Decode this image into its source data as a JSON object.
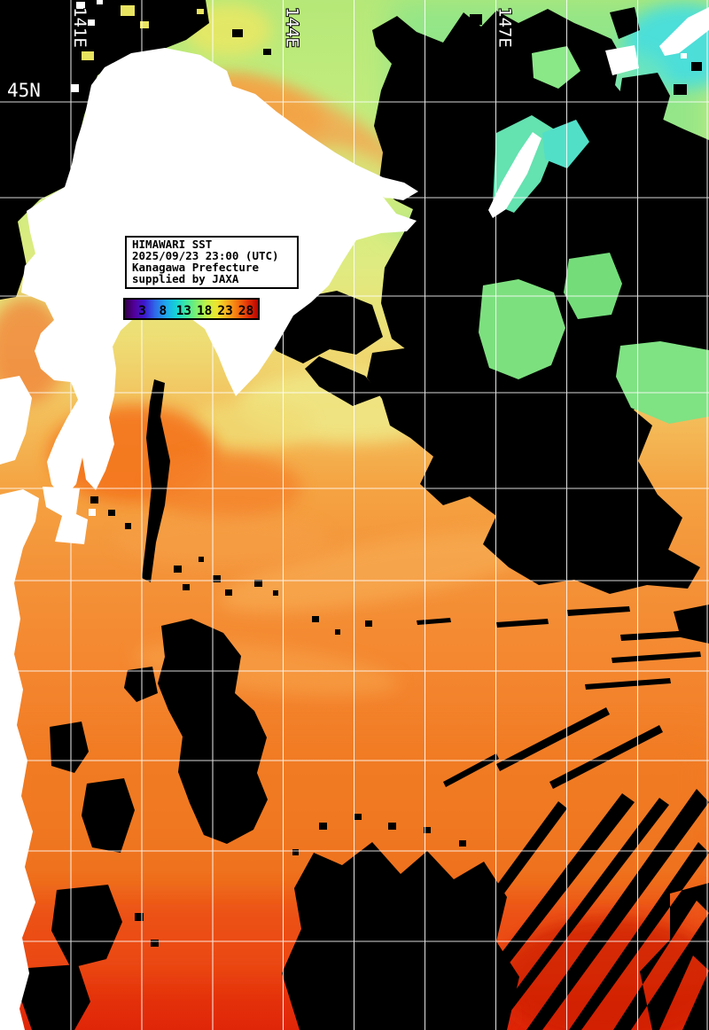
{
  "info_box": {
    "lines": [
      "HIMAWARI SST",
      "2025/09/23 23:00 (UTC)",
      "Kanagawa Prefecture",
      "supplied by JAXA"
    ]
  },
  "colorbar": {
    "tick_labels": [
      "3",
      "8",
      "13",
      "18",
      "23",
      "28"
    ],
    "gradient": [
      "#2e003e",
      "#53009b",
      "#3b1bd1",
      "#2e6ae8",
      "#1fa6f0",
      "#15d2d5",
      "#3ee9a2",
      "#7ff06e",
      "#c3f245",
      "#f0e32e",
      "#f8ad1d",
      "#f4700e",
      "#e03008",
      "#b40000"
    ],
    "border_color": "#000000"
  },
  "graticule": {
    "lat_labels": [
      "45N"
    ],
    "lon_labels": [
      "141E",
      "144E",
      "147E"
    ],
    "line_color": "#ffffff"
  },
  "palette": {
    "land": "#ffffff",
    "cloud_no_data": "#000000",
    "sea_north_green": "#b5e878",
    "sea_cyan_patch": "#44dee2",
    "sea_warm_band": "#f2ab52",
    "sea_mid_orange": "#f49339",
    "sea_south_red": "#e02608"
  }
}
